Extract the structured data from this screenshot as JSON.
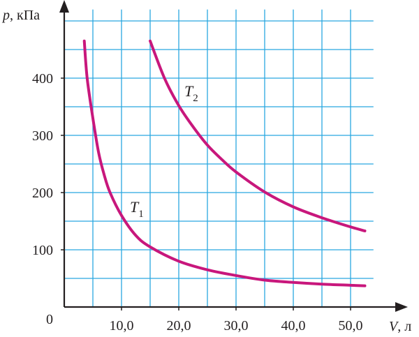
{
  "chart_data": {
    "type": "line",
    "x_axis": {
      "symbol": "V",
      "unit": "л",
      "range": [
        0,
        54
      ],
      "ticks": [
        {
          "value": 10,
          "label": "10,0"
        },
        {
          "value": 20,
          "label": "20,0"
        },
        {
          "value": 30,
          "label": "30,0"
        },
        {
          "value": 40,
          "label": "40,0"
        },
        {
          "value": 50,
          "label": "50,0"
        }
      ]
    },
    "y_axis": {
      "symbol": "p",
      "unit": "кПа",
      "range": [
        0,
        520
      ],
      "ticks": [
        {
          "value": 100,
          "label": "100"
        },
        {
          "value": 200,
          "label": "200"
        },
        {
          "value": 300,
          "label": "300"
        },
        {
          "value": 400,
          "label": "400"
        }
      ]
    },
    "origin_label": "0",
    "grid": {
      "on": true,
      "x_step": 5,
      "y_step": 50,
      "color": "#29a8e0"
    },
    "series": [
      {
        "name": "T",
        "subscript": "1",
        "color": "#c8177c",
        "x": [
          3.5,
          4,
          5,
          6,
          7,
          8,
          10,
          12.5,
          15,
          20,
          25,
          30,
          35,
          40,
          45,
          50,
          52.5
        ],
        "y": [
          465,
          400,
          330,
          270,
          230,
          200,
          160,
          125,
          105,
          80,
          65,
          55,
          47,
          43,
          40,
          38,
          37
        ]
      },
      {
        "name": "T",
        "subscript": "2",
        "color": "#c8177c",
        "x": [
          15,
          17.5,
          20,
          22.5,
          25,
          27.5,
          30,
          35,
          40,
          45,
          50,
          52.5
        ],
        "y": [
          465,
          400,
          352,
          315,
          283,
          258,
          236,
          201,
          175,
          156,
          140,
          133
        ]
      }
    ]
  }
}
